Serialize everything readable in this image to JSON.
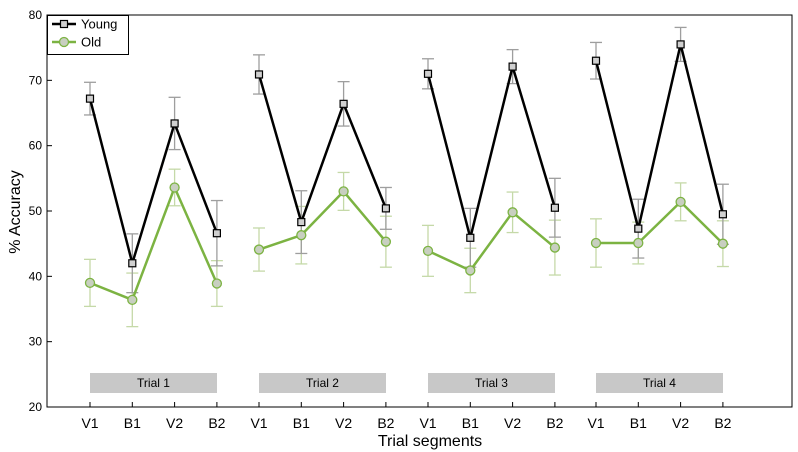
{
  "chart_data": {
    "type": "line",
    "xlabel": "Trial segments",
    "ylabel": "% Accuracy",
    "ylim": [
      20,
      80
    ],
    "yticks": [
      20,
      30,
      40,
      50,
      60,
      70,
      80
    ],
    "groups": [
      {
        "label": "Trial 1",
        "categories": [
          "V1",
          "B1",
          "V2",
          "B2"
        ]
      },
      {
        "label": "Trial 2",
        "categories": [
          "V1",
          "B1",
          "V2",
          "B2"
        ]
      },
      {
        "label": "Trial 3",
        "categories": [
          "V1",
          "B1",
          "V2",
          "B2"
        ]
      },
      {
        "label": "Trial 4",
        "categories": [
          "V1",
          "B1",
          "V2",
          "B2"
        ]
      }
    ],
    "series": [
      {
        "name": "Young",
        "color": "#000000",
        "marker": "square",
        "values": [
          [
            67.2,
            42.0,
            63.4,
            46.6
          ],
          [
            70.9,
            48.3,
            66.4,
            50.4
          ],
          [
            71.0,
            45.9,
            72.1,
            50.5
          ],
          [
            73.0,
            47.3,
            75.5,
            49.5
          ]
        ],
        "errors": [
          [
            2.5,
            4.5,
            4.0,
            5.0
          ],
          [
            3.0,
            4.8,
            3.4,
            3.2
          ],
          [
            2.3,
            4.5,
            2.6,
            4.5
          ],
          [
            2.8,
            4.5,
            2.6,
            4.6
          ]
        ]
      },
      {
        "name": "Old",
        "color": "#7cb342",
        "marker": "circle",
        "values": [
          [
            39.0,
            36.4,
            53.6,
            38.9
          ],
          [
            44.1,
            46.3,
            53.0,
            45.3
          ],
          [
            43.9,
            40.9,
            49.8,
            44.4
          ],
          [
            45.1,
            45.1,
            51.4,
            45.0
          ]
        ],
        "errors": [
          [
            3.6,
            4.1,
            2.8,
            3.5
          ],
          [
            3.3,
            4.4,
            2.9,
            3.9
          ],
          [
            3.9,
            3.4,
            3.1,
            4.2
          ],
          [
            3.7,
            3.2,
            2.9,
            3.5
          ]
        ]
      }
    ],
    "legend": {
      "placement": "top-left"
    },
    "grid": false
  }
}
